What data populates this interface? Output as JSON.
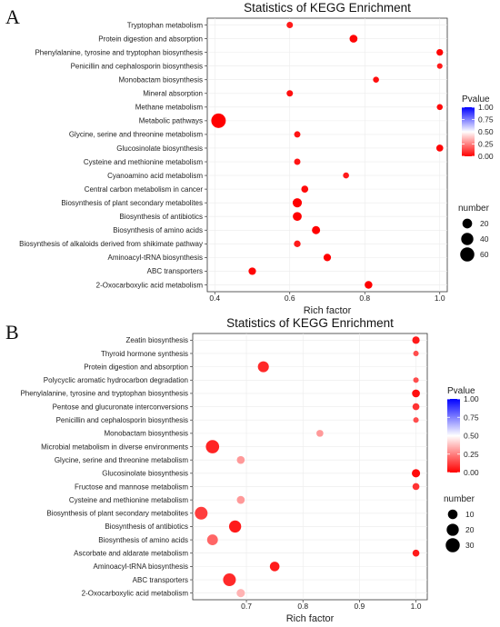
{
  "chart_data": [
    {
      "type": "scatter",
      "panel_label": "A",
      "title": "Statistics of KEGG Enrichment",
      "xlabel": "Rich factor",
      "xlim": [
        0.38,
        1.02
      ],
      "xticks": [
        "0.4",
        "0.6",
        "0.8",
        "1.0"
      ],
      "xtick_values": [
        0.4,
        0.6,
        0.8,
        1.0
      ],
      "pvalue_legend": {
        "title": "Pvalue",
        "ticks": [
          "1.00",
          "0.75",
          "0.50",
          "0.25",
          "0.00"
        ],
        "values": [
          1.0,
          0.75,
          0.5,
          0.25,
          0.0
        ]
      },
      "number_legend": {
        "title": "number",
        "ticks": [
          "20",
          "40",
          "60"
        ],
        "values": [
          20,
          40,
          60
        ]
      },
      "size_max": 65,
      "pathways": [
        "Tryptophan metabolism",
        "Protein digestion and absorption",
        "Phenylalanine, tyrosine and tryptophan biosynthesis",
        "Penicillin and cephalosporin biosynthesis",
        "Monobactam biosynthesis",
        "Mineral absorption",
        "Methane metabolism",
        "Metabolic pathways",
        "Glycine, serine and threonine metabolism",
        "Glucosinolate biosynthesis",
        "Cysteine and methionine metabolism",
        "Cyanoamino acid metabolism",
        "Central carbon metabolism in cancer",
        "Biosynthesis of plant secondary metabolites",
        "Biosynthesis of antibiotics",
        "Biosynthesis of amino acids",
        "Biosynthesis of alkaloids derived from shikimate pathway",
        "Aminoacyl-tRNA biosynthesis",
        "ABC transporters",
        "2-Oxocarboxylic acid metabolism"
      ],
      "rich_factor": [
        0.6,
        0.77,
        1.0,
        1.0,
        0.83,
        0.6,
        1.0,
        0.41,
        0.62,
        1.0,
        0.62,
        0.75,
        0.64,
        0.62,
        0.62,
        0.67,
        0.62,
        0.7,
        0.5,
        0.81
      ],
      "number": [
        4,
        10,
        5,
        2,
        3,
        4,
        3,
        64,
        4,
        6,
        4,
        3,
        6,
        17,
        15,
        11,
        5,
        8,
        8,
        9
      ],
      "pvalue": [
        0.05,
        0.01,
        0.01,
        0.05,
        0.03,
        0.03,
        0.02,
        0.0,
        0.04,
        0.01,
        0.04,
        0.05,
        0.02,
        0.0,
        0.0,
        0.0,
        0.05,
        0.0,
        0.01,
        0.0
      ]
    },
    {
      "type": "scatter",
      "panel_label": "B",
      "title": "Statistics of KEGG Enrichment",
      "xlabel": "Rich factor",
      "xlim": [
        0.605,
        1.02
      ],
      "xticks": [
        "0.7",
        "0.8",
        "0.9",
        "1.0"
      ],
      "xtick_values": [
        0.7,
        0.8,
        0.9,
        1.0
      ],
      "pvalue_legend": {
        "title": "Pvalue",
        "ticks": [
          "1.00",
          "0.75",
          "0.50",
          "0.25",
          "0.00"
        ],
        "values": [
          1.0,
          0.75,
          0.5,
          0.25,
          0.0
        ]
      },
      "number_legend": {
        "title": "number",
        "ticks": [
          "10",
          "20",
          "30"
        ],
        "values": [
          10,
          20,
          30
        ]
      },
      "size_max": 33,
      "pathways": [
        "Zeatin biosynthesis",
        "Thyroid hormone synthesis",
        "Protein digestion and absorption",
        "Polycyclic aromatic hydrocarbon degradation",
        "Phenylalanine, tyrosine and tryptophan biosynthesis",
        "Pentose and glucuronate interconversions",
        "Penicillin and cephalosporin biosynthesis",
        "Monobactam biosynthesis",
        "Microbial metabolism in diverse environments",
        "Glycine, serine and threonine metabolism",
        "Glucosinolate biosynthesis",
        "Fructose and mannose metabolism",
        "Cysteine and methionine metabolism",
        "Biosynthesis of plant secondary metabolites",
        "Biosynthesis of antibiotics",
        "Biosynthesis of amino acids",
        "Ascorbate and aldarate metabolism",
        "Aminoacyl-tRNA biosynthesis",
        "ABC transporters",
        "2-Oxocarboxylic acid metabolism"
      ],
      "rich_factor": [
        1.0,
        1.0,
        0.73,
        1.0,
        1.0,
        1.0,
        1.0,
        0.83,
        0.64,
        0.69,
        1.0,
        1.0,
        0.69,
        0.62,
        0.68,
        0.64,
        1.0,
        0.75,
        0.67,
        0.69
      ],
      "number": [
        4,
        1,
        15,
        1,
        5,
        3,
        1,
        3,
        26,
        5,
        6,
        3,
        5,
        23,
        20,
        14,
        3,
        10,
        23,
        6
      ],
      "pvalue": [
        0.05,
        0.15,
        0.08,
        0.15,
        0.03,
        0.1,
        0.15,
        0.3,
        0.07,
        0.3,
        0.02,
        0.1,
        0.3,
        0.12,
        0.05,
        0.2,
        0.05,
        0.05,
        0.08,
        0.35
      ]
    }
  ]
}
